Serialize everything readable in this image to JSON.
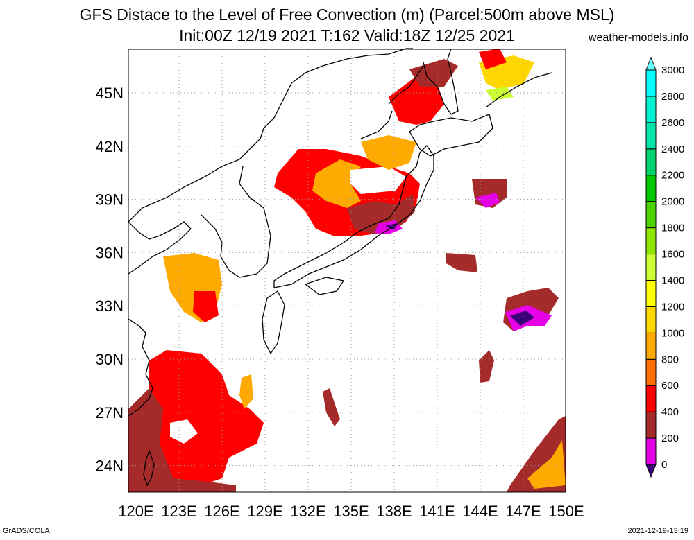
{
  "title": {
    "line1": "GFS Distace to the Level of Free Convection (m) (Parcel:500m above MSL)",
    "line2": "Init:00Z 12/19 2021 T:162 Valid:18Z 12/25 2021"
  },
  "site": "weather-models.info",
  "footer": {
    "left": "GrADS/COLA",
    "right": "2021-12-19-13:19"
  },
  "map": {
    "lon_labels": [
      "120E",
      "123E",
      "126E",
      "129E",
      "132E",
      "135E",
      "138E",
      "141E",
      "144E",
      "147E",
      "150E"
    ],
    "lat_labels": [
      "45N",
      "42N",
      "39N",
      "36N",
      "33N",
      "30N",
      "27N",
      "24N"
    ],
    "grid": true
  },
  "colorbar": {
    "labels": [
      "0",
      "200",
      "400",
      "600",
      "800",
      "1000",
      "1200",
      "1400",
      "1600",
      "1800",
      "2000",
      "2200",
      "2400",
      "2600",
      "2800",
      "3000"
    ],
    "colors": [
      "#3c0078",
      "#e600e6",
      "#a52a2a",
      "#ff0000",
      "#ff6e00",
      "#ffaa00",
      "#ffd700",
      "#ffff00",
      "#ccff33",
      "#8ee600",
      "#4dd200",
      "#00c800",
      "#00d26e",
      "#00e6aa",
      "#00f0d2",
      "#00ffff",
      "#66ffff"
    ]
  }
}
